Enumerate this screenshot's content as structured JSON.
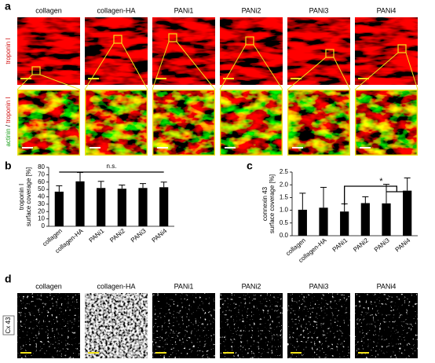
{
  "panel_labels": [
    "a",
    "b",
    "c",
    "d"
  ],
  "panel_a": {
    "columns": [
      "collagen",
      "collagen-HA",
      "PANi1",
      "PANi2",
      "PANi3",
      "PANi4"
    ],
    "row_label_top": "troponin I",
    "row_label_bottom": [
      "actinin",
      "/",
      "troponin I"
    ]
  },
  "chart_data": [
    {
      "type": "bar",
      "ylabel": [
        "troponin I",
        "surface coverage [%]"
      ],
      "categories": [
        "collagen",
        "collagen-HA",
        "PANi1",
        "PANi2",
        "PANi3",
        "PANi4"
      ],
      "values": [
        47,
        61,
        52,
        51,
        52,
        53
      ],
      "errors": [
        8,
        12,
        9,
        5,
        6,
        7
      ],
      "color": "#000000",
      "ylim": [
        0,
        80
      ],
      "yticks": [
        0,
        10,
        20,
        30,
        40,
        50,
        60,
        70,
        80
      ],
      "annotation": "n.s."
    },
    {
      "type": "bar",
      "ylabel": [
        "connexin 43",
        "surface coverage [%]"
      ],
      "categories": [
        "collagen",
        "collagen-HA",
        "PANi1",
        "PANi2",
        "PANi3",
        "PANi4"
      ],
      "values": [
        1.02,
        1.1,
        0.95,
        1.28,
        1.27,
        1.77
      ],
      "errors": [
        0.65,
        0.8,
        0.3,
        0.25,
        0.75,
        0.5
      ],
      "color": "#000000",
      "ylim": [
        0,
        2.5
      ],
      "yticks": [
        {
          "value": 0,
          "label": "0.0"
        },
        {
          "value": 0.5,
          "label": "0.5"
        },
        {
          "value": 1,
          "label": "1.0"
        },
        {
          "value": 1.5,
          "label": "1.5"
        },
        {
          "value": 2,
          "label": "2.0"
        },
        {
          "value": 2.5,
          "label": "2.5"
        }
      ],
      "annotation": "*"
    }
  ],
  "panel_d": {
    "columns": [
      "collagen",
      "collagen-HA",
      "PANi1",
      "PANi2",
      "PANi3",
      "PANi4"
    ],
    "row_label": "Cx 43"
  }
}
